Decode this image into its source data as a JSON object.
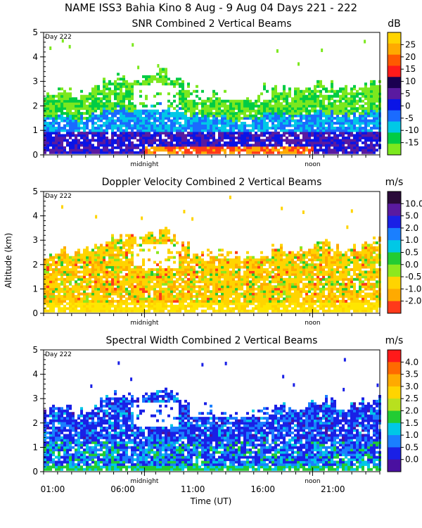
{
  "figure_title": "NAME ISS3 Bahia Kino    8 Aug -  9 Aug 04 Days 221 - 222",
  "chart_data": [
    {
      "type": "heatmap",
      "title": "SNR Combined 2 Vertical Beams",
      "units": "dB",
      "day_label": "Day 222",
      "ylim": [
        0,
        5
      ],
      "y_ticks": [
        0,
        1,
        2,
        3,
        4,
        5
      ],
      "colorbar_labels": [
        "25",
        "20",
        "15",
        "10",
        "5",
        "0",
        "-5",
        "-10",
        "-15"
      ],
      "colorbar_colors": [
        "#ffd400",
        "#ffaa00",
        "#ff5a00",
        "#ff1a1a",
        "#1a0050",
        "#5a1aa0",
        "#0a14e6",
        "#1a6bff",
        "#00c8e6",
        "#00cc44",
        "#7ce81e"
      ],
      "markers": [
        "midnight",
        "noon"
      ]
    },
    {
      "type": "heatmap",
      "title": "Doppler Velocity Combined 2 Vertical Beams",
      "units": "m/s",
      "day_label": "Day 222",
      "ylim": [
        0,
        5
      ],
      "y_ticks": [
        0,
        1,
        2,
        3,
        4,
        5
      ],
      "colorbar_labels": [
        "10.0",
        "5.0",
        "2.0",
        "1.0",
        "0.5",
        "0.0",
        "-0.5",
        "-1.0",
        "-2.0"
      ],
      "colorbar_colors": [
        "#2a0a3a",
        "#5a1aa0",
        "#1a20e6",
        "#1a7fff",
        "#00c8e6",
        "#22cc33",
        "#8ce81e",
        "#ffd400",
        "#ffaa00",
        "#ff3a1a"
      ],
      "markers": [
        "midnight",
        "noon"
      ]
    },
    {
      "type": "heatmap",
      "title": "Spectral Width Combined 2 Vertical Beams",
      "units": "m/s",
      "day_label": "Day 222",
      "ylim": [
        0,
        5
      ],
      "y_ticks": [
        0,
        1,
        2,
        3,
        4,
        5
      ],
      "colorbar_labels": [
        "4.0",
        "3.5",
        "3.0",
        "2.5",
        "2.0",
        "1.5",
        "1.0",
        "0.5",
        "0.0"
      ],
      "colorbar_colors": [
        "#ff1a1a",
        "#ff6a00",
        "#ffaa00",
        "#ffd400",
        "#b8e01e",
        "#22cc33",
        "#00c8e6",
        "#1a7fff",
        "#1a20e6",
        "#4a10a0"
      ],
      "markers": [
        "midnight",
        "noon"
      ]
    }
  ],
  "shared_axis": {
    "ylabel": "Altitude (km)",
    "xlabel": "Time (UT)",
    "x_ticks": [
      "01:00",
      "06:00",
      "11:00",
      "16:00",
      "21:00"
    ]
  }
}
